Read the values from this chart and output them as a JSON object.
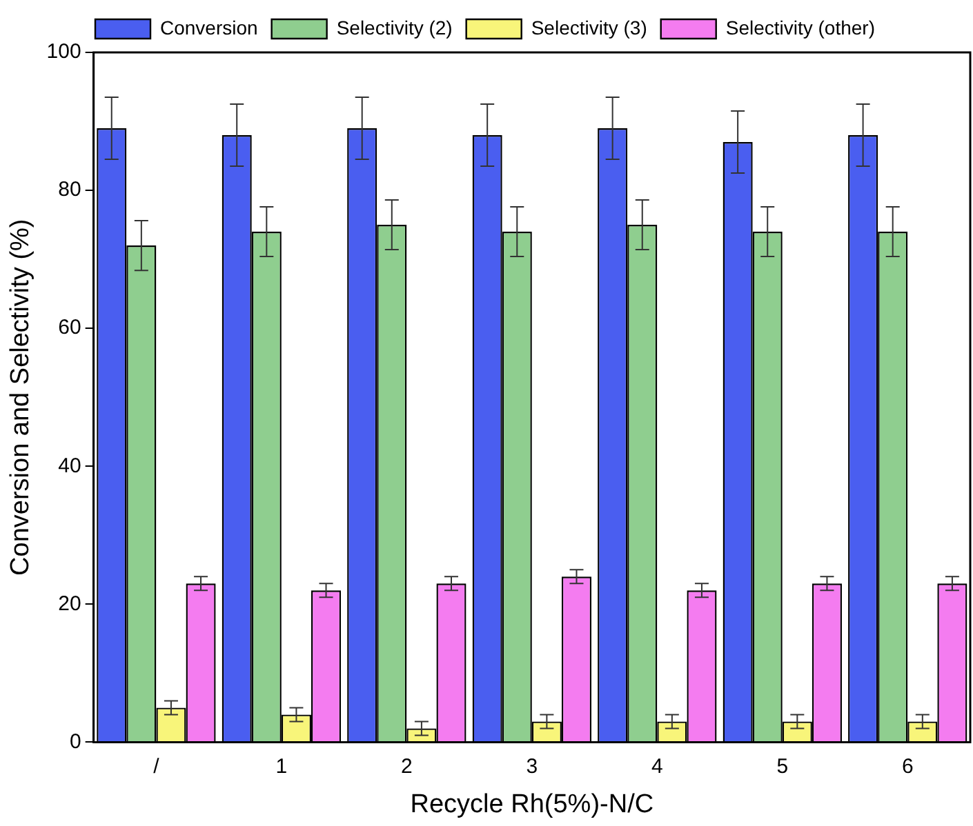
{
  "chart_data": {
    "type": "bar",
    "xlabel": "Recycle Rh(5%)-N/C",
    "ylabel": "Conversion and Selectivity (%)",
    "categories": [
      "/",
      "1",
      "2",
      "3",
      "4",
      "5",
      "6"
    ],
    "series": [
      {
        "name": "Conversion",
        "color": "#4a5ef0",
        "values": [
          89,
          88,
          89,
          88,
          89,
          87,
          88
        ],
        "errors": [
          4.5,
          4.5,
          4.5,
          4.5,
          4.5,
          4.5,
          4.5
        ]
      },
      {
        "name": "Selectivity (2)",
        "color": "#8fce8f",
        "values": [
          72,
          74,
          75,
          74,
          75,
          74,
          74
        ],
        "errors": [
          3.6,
          3.6,
          3.6,
          3.6,
          3.6,
          3.6,
          3.6
        ]
      },
      {
        "name": "Selectivity (3)",
        "color": "#f8f57a",
        "values": [
          5,
          4,
          2,
          3,
          3,
          3,
          3
        ],
        "errors": [
          1,
          1,
          1,
          1,
          1,
          1,
          1
        ]
      },
      {
        "name": "Selectivity (other)",
        "color": "#f47cf0",
        "values": [
          23,
          22,
          23,
          24,
          22,
          23,
          23
        ],
        "errors": [
          1,
          1,
          1,
          1,
          1,
          1,
          1
        ]
      }
    ],
    "ylim": [
      0,
      100
    ],
    "yticks": [
      0,
      20,
      40,
      60,
      80,
      100
    ],
    "grid": false,
    "legend": "top"
  }
}
